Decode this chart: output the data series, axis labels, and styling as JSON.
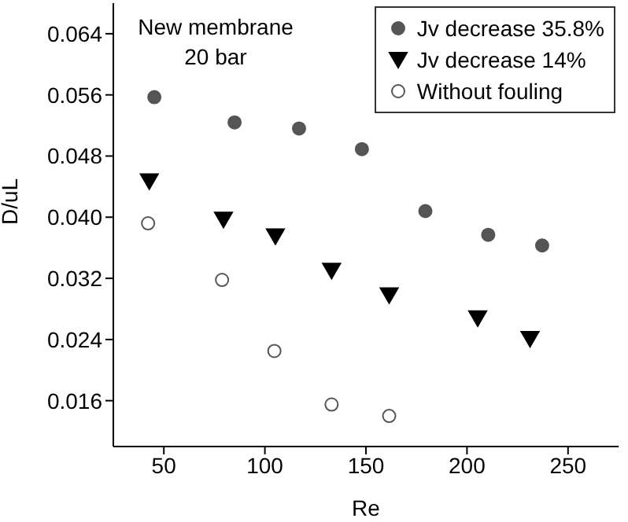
{
  "chart_data": {
    "type": "scatter",
    "xlabel": "Re",
    "ylabel": "D/uL",
    "annotations": [
      "New membrane",
      "20 bar"
    ],
    "xlim": [
      25,
      275
    ],
    "xticks": [
      50,
      100,
      150,
      200,
      250
    ],
    "ylim": [
      0.01,
      0.068
    ],
    "yticks": [
      0.016,
      0.024,
      0.032,
      {
        "value": 0.04,
        "label": "0.040"
      },
      0.048,
      0.056,
      0.064
    ],
    "grid": false,
    "legend": "top right",
    "series": [
      {
        "name": "Jv decrease 35.8%",
        "color": "#555555",
        "marker": "circle",
        "x": [
          45.3,
          85,
          116.9,
          148,
          179.4,
          210.5,
          237.2
        ],
        "values": [
          0.0557,
          0.0524,
          0.0516,
          0.0489,
          0.0408,
          0.0377,
          0.0363
        ]
      },
      {
        "name": "Jv decrease 14%",
        "color": "#000000",
        "marker": "triangle",
        "x": [
          42.8,
          79.5,
          105.2,
          133,
          161.5,
          205.3,
          231.2
        ],
        "values": [
          0.0447,
          0.0397,
          0.0375,
          0.033,
          0.0298,
          0.0268,
          0.0241
        ]
      },
      {
        "name": "Without fouling",
        "color": "#555555",
        "marker": "circle",
        "x": [
          42.2,
          78.8,
          104.7,
          133,
          161.5
        ],
        "values": [
          0.0392,
          0.0318,
          0.0225,
          0.0155,
          0.014
        ]
      }
    ]
  }
}
